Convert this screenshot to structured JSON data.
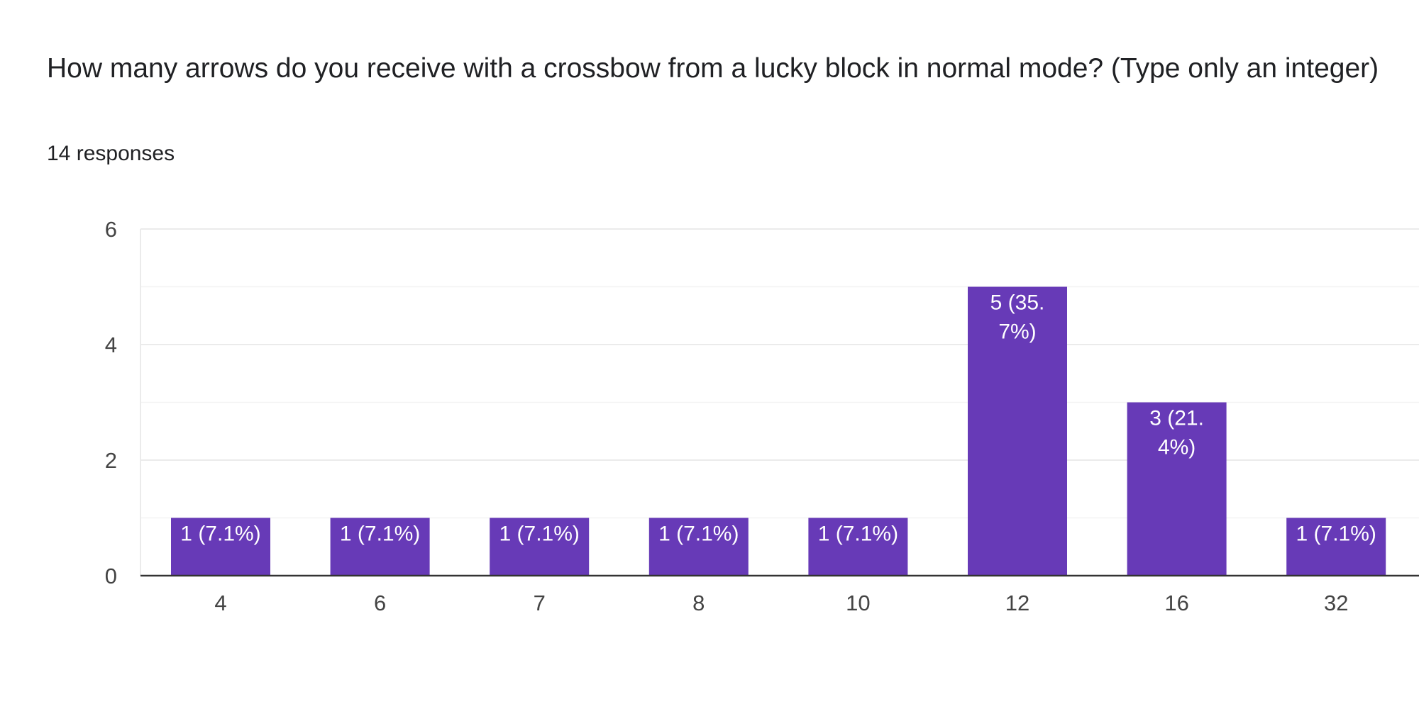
{
  "question": {
    "title": "How many arrows do you receive with a crossbow from a lucky block in normal mode? (Type only an integer)",
    "response_count": "14 responses"
  },
  "colors": {
    "bar": "#673ab7",
    "gridline": "#ebebeb",
    "baseline": "#333333"
  },
  "chart_data": {
    "type": "bar",
    "categories": [
      "4",
      "6",
      "7",
      "8",
      "10",
      "12",
      "16",
      "32"
    ],
    "values": [
      1,
      1,
      1,
      1,
      1,
      5,
      3,
      1
    ],
    "data_labels": [
      [
        "1 (7.1%)"
      ],
      [
        "1 (7.1%)"
      ],
      [
        "1 (7.1%)"
      ],
      [
        "1 (7.1%)"
      ],
      [
        "1 (7.1%)"
      ],
      [
        "5 (35.",
        "7%)"
      ],
      [
        "3 (21.",
        "4%)"
      ],
      [
        "1 (7.1%)"
      ]
    ],
    "y_ticks": [
      0,
      2,
      4,
      6
    ],
    "ylim": [
      0,
      6
    ],
    "grid": true
  }
}
